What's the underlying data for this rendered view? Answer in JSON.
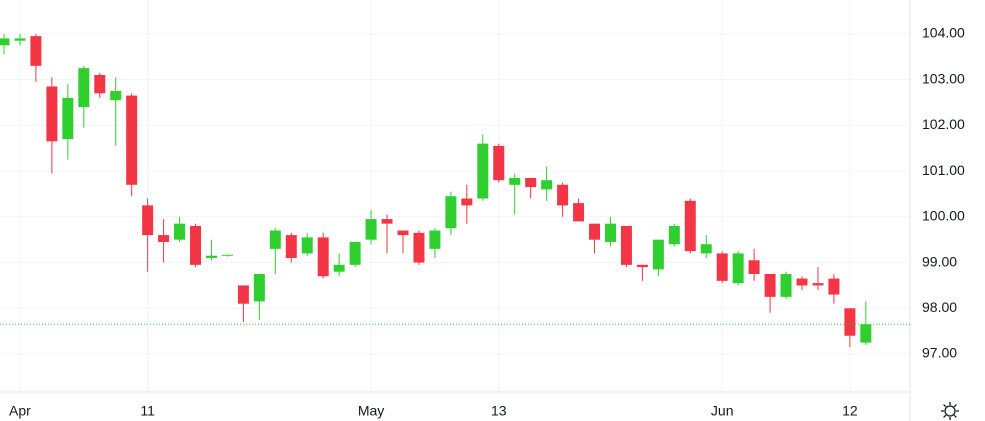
{
  "chart_data": {
    "type": "candlestick",
    "categories": [
      null,
      "Apr",
      null,
      null,
      null,
      null,
      null,
      null,
      null,
      "11",
      null,
      null,
      null,
      null,
      null,
      null,
      null,
      null,
      null,
      null,
      null,
      null,
      null,
      "May",
      null,
      null,
      null,
      null,
      null,
      null,
      null,
      "13",
      null,
      null,
      null,
      null,
      null,
      null,
      null,
      null,
      null,
      null,
      null,
      null,
      null,
      "Jun",
      null,
      null,
      null,
      null,
      null,
      null,
      null,
      "12",
      null
    ],
    "open": [
      103.75,
      103.85,
      103.95,
      102.85,
      101.7,
      102.4,
      103.1,
      102.55,
      102.65,
      100.25,
      99.6,
      99.5,
      99.8,
      99.1,
      99.15,
      98.5,
      98.15,
      99.3,
      99.6,
      99.2,
      99.55,
      98.8,
      98.95,
      99.5,
      99.95,
      99.7,
      99.65,
      99.3,
      99.75,
      100.4,
      100.4,
      101.55,
      100.7,
      100.85,
      100.6,
      100.7,
      100.3,
      99.85,
      99.45,
      99.8,
      98.95,
      98.85,
      99.4,
      100.35,
      99.2,
      99.2,
      98.55,
      99.05,
      98.75,
      98.25,
      98.65,
      98.55,
      98.65,
      98.0,
      97.25
    ],
    "high": [
      104.0,
      104.0,
      104.0,
      103.05,
      102.9,
      103.3,
      103.15,
      103.05,
      102.7,
      100.4,
      99.95,
      100.0,
      99.85,
      99.5,
      99.17,
      98.5,
      98.75,
      99.75,
      99.65,
      99.65,
      99.65,
      99.2,
      99.45,
      100.15,
      100.05,
      99.7,
      99.7,
      99.75,
      100.55,
      100.7,
      101.8,
      101.6,
      100.95,
      100.85,
      101.1,
      100.75,
      100.4,
      99.85,
      100.0,
      99.8,
      98.95,
      99.5,
      99.85,
      100.4,
      99.6,
      99.25,
      99.25,
      99.3,
      98.75,
      98.8,
      98.7,
      98.9,
      98.75,
      98.0,
      98.15
    ],
    "low": [
      103.55,
      103.75,
      102.95,
      100.95,
      101.25,
      101.95,
      102.6,
      101.55,
      100.45,
      98.8,
      99.0,
      99.45,
      98.9,
      99.05,
      99.13,
      97.7,
      97.75,
      98.75,
      99.0,
      99.15,
      98.65,
      98.7,
      98.9,
      99.4,
      99.2,
      99.2,
      98.95,
      99.1,
      99.6,
      99.85,
      100.35,
      100.75,
      100.05,
      100.4,
      100.35,
      100.0,
      99.9,
      99.2,
      99.35,
      98.9,
      98.6,
      98.7,
      99.35,
      99.2,
      99.1,
      98.55,
      98.5,
      98.6,
      97.9,
      98.2,
      98.4,
      98.4,
      98.1,
      97.15,
      97.2
    ],
    "close": [
      103.9,
      103.9,
      103.3,
      101.65,
      102.6,
      103.25,
      102.7,
      102.75,
      100.7,
      99.6,
      99.45,
      99.85,
      98.95,
      99.15,
      99.17,
      98.1,
      98.75,
      99.7,
      99.1,
      99.55,
      98.7,
      98.95,
      99.45,
      99.95,
      99.85,
      99.6,
      99.0,
      99.7,
      100.45,
      100.25,
      101.6,
      100.8,
      100.85,
      100.65,
      100.8,
      100.25,
      99.9,
      99.5,
      99.85,
      98.95,
      98.9,
      99.5,
      99.8,
      99.25,
      99.4,
      98.6,
      99.2,
      98.75,
      98.25,
      98.75,
      98.5,
      98.5,
      98.3,
      97.4,
      97.65
    ],
    "up_color": "#2fcf2f",
    "down_color": "#f23645",
    "last_price": 97.65,
    "ylim": [
      96.17,
      104.74
    ],
    "yticks": [
      {
        "value": 97,
        "label": "97.00"
      },
      {
        "value": 98,
        "label": "98.00"
      },
      {
        "value": 99,
        "label": "99.00"
      },
      {
        "value": 100,
        "label": "100.00"
      },
      {
        "value": 101,
        "label": "101.00"
      },
      {
        "value": 102,
        "label": "102.00"
      },
      {
        "value": 103,
        "label": "103.00"
      },
      {
        "value": 104,
        "label": "104.00"
      }
    ],
    "grid": true
  }
}
